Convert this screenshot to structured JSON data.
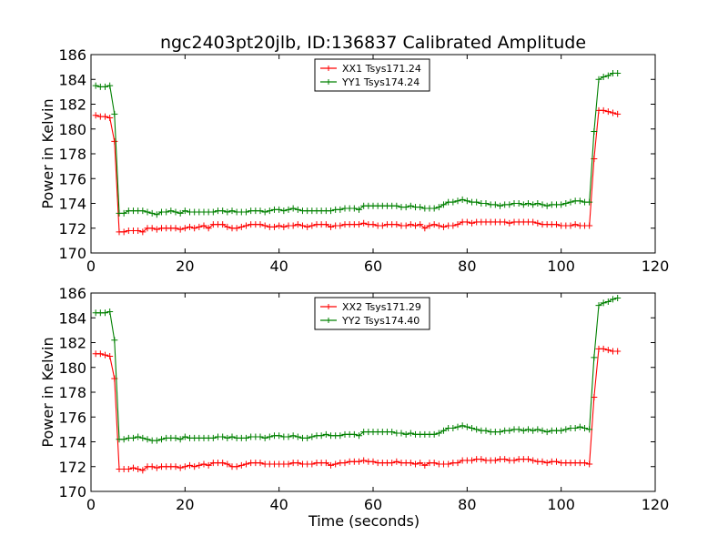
{
  "figure": {
    "title": "ngc2403pt20jlb, ID:136837 Calibrated Amplitude"
  },
  "chart_data": [
    {
      "type": "line",
      "title": "ngc2403pt20jlb, ID:136837 Calibrated Amplitude",
      "xlabel": "",
      "ylabel": "Power in Kelvin",
      "xlim": [
        0,
        120
      ],
      "ylim": [
        170,
        186
      ],
      "xticks": [
        0,
        20,
        40,
        60,
        80,
        100,
        120
      ],
      "yticks": [
        170,
        172,
        174,
        176,
        178,
        180,
        182,
        184,
        186
      ],
      "legend_position": "top-center",
      "x": [
        1,
        2,
        3,
        4,
        5,
        6,
        7,
        8,
        9,
        10,
        11,
        12,
        13,
        14,
        15,
        16,
        17,
        18,
        19,
        20,
        21,
        22,
        23,
        24,
        25,
        26,
        27,
        28,
        29,
        30,
        31,
        32,
        33,
        34,
        35,
        36,
        37,
        38,
        39,
        40,
        41,
        42,
        43,
        44,
        45,
        46,
        47,
        48,
        49,
        50,
        51,
        52,
        53,
        54,
        55,
        56,
        57,
        58,
        59,
        60,
        61,
        62,
        63,
        64,
        65,
        66,
        67,
        68,
        69,
        70,
        71,
        72,
        73,
        74,
        75,
        76,
        77,
        78,
        79,
        80,
        81,
        82,
        83,
        84,
        85,
        86,
        87,
        88,
        89,
        90,
        91,
        92,
        93,
        94,
        95,
        96,
        97,
        98,
        99,
        100,
        101,
        102,
        103,
        104,
        105,
        106,
        107,
        108,
        109,
        110,
        111,
        112
      ],
      "series": [
        {
          "name": "XX1 Tsys171.24",
          "color": "#ff0000",
          "values": [
            181.1,
            181.0,
            181.0,
            180.9,
            179.0,
            171.7,
            171.7,
            171.8,
            171.8,
            171.8,
            171.7,
            172.0,
            172.0,
            171.9,
            172.0,
            172.0,
            172.0,
            172.0,
            171.9,
            172.0,
            172.1,
            172.0,
            172.1,
            172.2,
            172.0,
            172.3,
            172.3,
            172.3,
            172.1,
            172.0,
            172.0,
            172.1,
            172.2,
            172.3,
            172.3,
            172.3,
            172.2,
            172.1,
            172.1,
            172.2,
            172.1,
            172.2,
            172.2,
            172.3,
            172.2,
            172.1,
            172.2,
            172.3,
            172.3,
            172.3,
            172.1,
            172.2,
            172.2,
            172.3,
            172.3,
            172.3,
            172.3,
            172.4,
            172.3,
            172.3,
            172.2,
            172.2,
            172.3,
            172.3,
            172.3,
            172.2,
            172.2,
            172.3,
            172.2,
            172.3,
            172.0,
            172.2,
            172.3,
            172.2,
            172.1,
            172.2,
            172.2,
            172.3,
            172.5,
            172.5,
            172.4,
            172.5,
            172.5,
            172.5,
            172.5,
            172.5,
            172.5,
            172.5,
            172.4,
            172.5,
            172.5,
            172.5,
            172.5,
            172.5,
            172.4,
            172.3,
            172.3,
            172.3,
            172.3,
            172.2,
            172.2,
            172.2,
            172.3,
            172.2,
            172.2,
            172.2,
            177.6,
            181.5,
            181.5,
            181.4,
            181.3,
            181.2
          ]
        },
        {
          "name": "YY1 Tsys174.24",
          "color": "#008000",
          "values": [
            183.5,
            183.4,
            183.4,
            183.5,
            181.2,
            173.2,
            173.2,
            173.4,
            173.4,
            173.4,
            173.4,
            173.3,
            173.2,
            173.1,
            173.3,
            173.3,
            173.4,
            173.3,
            173.2,
            173.4,
            173.3,
            173.3,
            173.3,
            173.3,
            173.3,
            173.3,
            173.4,
            173.4,
            173.3,
            173.4,
            173.3,
            173.3,
            173.3,
            173.4,
            173.4,
            173.4,
            173.3,
            173.4,
            173.5,
            173.5,
            173.4,
            173.5,
            173.6,
            173.5,
            173.4,
            173.4,
            173.4,
            173.4,
            173.4,
            173.4,
            173.4,
            173.5,
            173.5,
            173.6,
            173.6,
            173.6,
            173.5,
            173.8,
            173.8,
            173.8,
            173.8,
            173.8,
            173.8,
            173.8,
            173.8,
            173.7,
            173.7,
            173.8,
            173.7,
            173.7,
            173.6,
            173.6,
            173.6,
            173.7,
            173.9,
            174.1,
            174.1,
            174.2,
            174.3,
            174.2,
            174.1,
            174.1,
            174.0,
            174.0,
            173.9,
            173.9,
            173.8,
            173.9,
            173.9,
            174.0,
            174.0,
            173.9,
            174.0,
            173.9,
            174.0,
            173.9,
            173.8,
            173.9,
            173.9,
            173.9,
            174.0,
            174.1,
            174.2,
            174.2,
            174.1,
            174.1,
            179.8,
            184.0,
            184.2,
            184.3,
            184.5,
            184.5
          ]
        }
      ]
    },
    {
      "type": "line",
      "title": "",
      "xlabel": "Time (seconds)",
      "ylabel": "Power in Kelvin",
      "xlim": [
        0,
        120
      ],
      "ylim": [
        170,
        186
      ],
      "xticks": [
        0,
        20,
        40,
        60,
        80,
        100,
        120
      ],
      "yticks": [
        170,
        172,
        174,
        176,
        178,
        180,
        182,
        184,
        186
      ],
      "legend_position": "top-center",
      "x": [
        1,
        2,
        3,
        4,
        5,
        6,
        7,
        8,
        9,
        10,
        11,
        12,
        13,
        14,
        15,
        16,
        17,
        18,
        19,
        20,
        21,
        22,
        23,
        24,
        25,
        26,
        27,
        28,
        29,
        30,
        31,
        32,
        33,
        34,
        35,
        36,
        37,
        38,
        39,
        40,
        41,
        42,
        43,
        44,
        45,
        46,
        47,
        48,
        49,
        50,
        51,
        52,
        53,
        54,
        55,
        56,
        57,
        58,
        59,
        60,
        61,
        62,
        63,
        64,
        65,
        66,
        67,
        68,
        69,
        70,
        71,
        72,
        73,
        74,
        75,
        76,
        77,
        78,
        79,
        80,
        81,
        82,
        83,
        84,
        85,
        86,
        87,
        88,
        89,
        90,
        91,
        92,
        93,
        94,
        95,
        96,
        97,
        98,
        99,
        100,
        101,
        102,
        103,
        104,
        105,
        106,
        107,
        108,
        109,
        110,
        111,
        112
      ],
      "series": [
        {
          "name": "XX2 Tsys171.29",
          "color": "#ff0000",
          "values": [
            181.1,
            181.1,
            181.0,
            180.9,
            179.1,
            171.8,
            171.8,
            171.8,
            171.9,
            171.8,
            171.7,
            172.0,
            172.0,
            171.9,
            172.0,
            172.0,
            172.0,
            172.0,
            171.9,
            172.0,
            172.1,
            172.0,
            172.1,
            172.2,
            172.1,
            172.3,
            172.3,
            172.3,
            172.2,
            172.0,
            172.0,
            172.1,
            172.2,
            172.3,
            172.3,
            172.3,
            172.2,
            172.2,
            172.2,
            172.2,
            172.2,
            172.2,
            172.3,
            172.3,
            172.2,
            172.2,
            172.2,
            172.3,
            172.3,
            172.3,
            172.1,
            172.2,
            172.3,
            172.3,
            172.4,
            172.4,
            172.4,
            172.5,
            172.4,
            172.4,
            172.3,
            172.3,
            172.3,
            172.3,
            172.4,
            172.3,
            172.3,
            172.3,
            172.2,
            172.3,
            172.1,
            172.3,
            172.3,
            172.2,
            172.2,
            172.2,
            172.3,
            172.3,
            172.5,
            172.5,
            172.5,
            172.6,
            172.6,
            172.5,
            172.5,
            172.5,
            172.6,
            172.6,
            172.5,
            172.5,
            172.6,
            172.6,
            172.6,
            172.5,
            172.4,
            172.4,
            172.3,
            172.4,
            172.4,
            172.3,
            172.3,
            172.3,
            172.3,
            172.3,
            172.3,
            172.2,
            177.6,
            181.5,
            181.5,
            181.4,
            181.3,
            181.3
          ]
        },
        {
          "name": "YY2 Tsys174.40",
          "color": "#008000",
          "values": [
            184.4,
            184.4,
            184.4,
            184.5,
            182.2,
            174.2,
            174.2,
            174.3,
            174.3,
            174.4,
            174.3,
            174.2,
            174.1,
            174.1,
            174.2,
            174.3,
            174.3,
            174.3,
            174.2,
            174.4,
            174.3,
            174.3,
            174.3,
            174.3,
            174.3,
            174.3,
            174.4,
            174.4,
            174.3,
            174.4,
            174.3,
            174.3,
            174.3,
            174.4,
            174.4,
            174.4,
            174.3,
            174.4,
            174.5,
            174.5,
            174.4,
            174.4,
            174.5,
            174.4,
            174.3,
            174.3,
            174.4,
            174.5,
            174.5,
            174.6,
            174.5,
            174.5,
            174.5,
            174.6,
            174.6,
            174.6,
            174.5,
            174.8,
            174.8,
            174.8,
            174.8,
            174.8,
            174.8,
            174.8,
            174.7,
            174.7,
            174.6,
            174.7,
            174.6,
            174.6,
            174.6,
            174.6,
            174.6,
            174.7,
            174.9,
            175.1,
            175.1,
            175.2,
            175.3,
            175.2,
            175.1,
            175.0,
            174.9,
            174.9,
            174.8,
            174.8,
            174.8,
            174.9,
            174.9,
            175.0,
            175.0,
            174.9,
            175.0,
            174.9,
            175.0,
            174.9,
            174.8,
            174.9,
            174.9,
            174.9,
            175.0,
            175.1,
            175.1,
            175.2,
            175.1,
            175.0,
            180.8,
            185.0,
            185.2,
            185.3,
            185.5,
            185.6
          ]
        }
      ]
    }
  ]
}
